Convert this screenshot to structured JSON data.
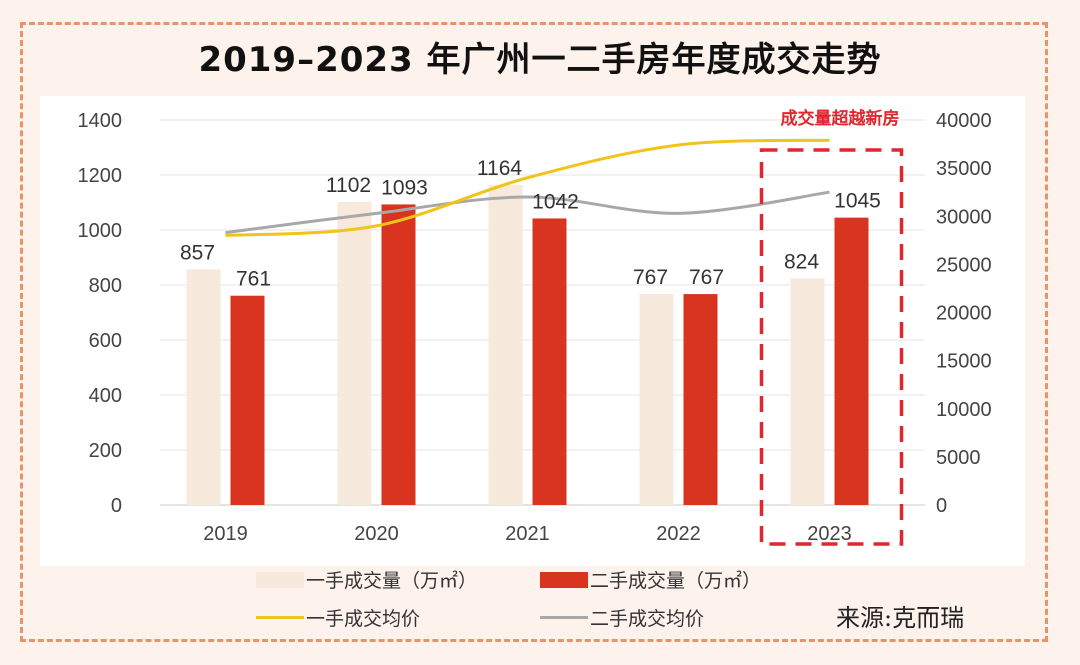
{
  "title": "2019–2023 年广州一二手房年度成交走势",
  "source": "来源:克而瑞",
  "colors": {
    "new_volume": "#f7e9dc",
    "second_volume": "#d9341f",
    "new_price": "#f0c419",
    "second_price": "#a8a8a8",
    "highlight": "#e0262f",
    "frame": "#e8936a"
  },
  "chart_data": {
    "type": "bar",
    "title": "2019–2023 年广州一二手房年度成交走势",
    "categories": [
      "2019",
      "2020",
      "2021",
      "2022",
      "2023"
    ],
    "series": [
      {
        "name": "一手成交量（万㎡）",
        "kind": "bar",
        "axis": "left",
        "values": [
          857,
          1102,
          1164,
          767,
          824
        ]
      },
      {
        "name": "二手成交量（万㎡）",
        "kind": "bar",
        "axis": "left",
        "values": [
          761,
          1093,
          1042,
          767,
          1045
        ]
      },
      {
        "name": "一手成交均价",
        "kind": "line",
        "axis": "right",
        "values": [
          28000,
          29000,
          34000,
          37400,
          37900
        ]
      },
      {
        "name": "二手成交均价",
        "kind": "line",
        "axis": "right",
        "values": [
          28300,
          30300,
          32000,
          30300,
          32500
        ]
      }
    ],
    "y_left": {
      "min": 0,
      "max": 1400,
      "ticks": [
        "0",
        "200",
        "400",
        "600",
        "800",
        "1000",
        "1200",
        "1400"
      ]
    },
    "y_right": {
      "min": 0,
      "max": 40000,
      "ticks": [
        "0",
        "5000",
        "10000",
        "15000",
        "20000",
        "25000",
        "30000",
        "35000",
        "40000"
      ]
    },
    "grid": true,
    "legend_position": "bottom",
    "annotation": {
      "text": "成交量超越新房",
      "category": "2023"
    },
    "xlabel": "",
    "ylabel": ""
  }
}
